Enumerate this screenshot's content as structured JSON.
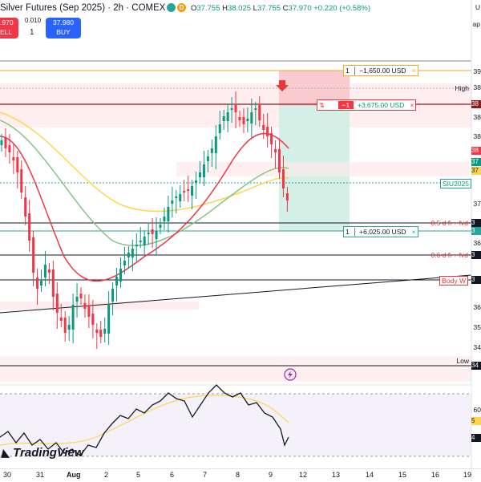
{
  "header": {
    "title": "Silver Futures (Sep 2025) · 2h · COMEX",
    "badge": "D",
    "open_label": "O",
    "open": "37.755",
    "high_label": "H",
    "high": "38.025",
    "low_label": "L",
    "low": "37.755",
    "close_label": "C",
    "close": "37.970",
    "change": "+0.220 (+0.58%)"
  },
  "trade": {
    "sell_price": ".970",
    "sell_label": "ELL",
    "spread": "0.010",
    "quantity": "1",
    "buy_price": "37.980",
    "buy_label": "BUY"
  },
  "right_edge": {
    "top": "U",
    "second": "ap"
  },
  "price_scale": [
    "39",
    "38",
    "38",
    "38",
    "38",
    "38",
    "37",
    "37",
    "37",
    "37",
    "37",
    "36",
    "36",
    "35",
    "34"
  ],
  "orders": {
    "stop": {
      "qty": "1",
      "pnl": "−1,650.00 USD",
      "close": "×"
    },
    "position": {
      "side_icon": "⇅",
      "qty": "−1",
      "pnl": "+3,675.00 USD",
      "close": "×"
    },
    "target": {
      "qty": "1",
      "pnl": "+6,025.00 USD",
      "close": "×"
    }
  },
  "labels": {
    "high": "High",
    "low": "Low",
    "symbol": "SIU2025",
    "fvd_05": "0.5 d fi + fvd",
    "fvd_06": "0.6 d fi + fvd",
    "body_w": "Body W"
  },
  "scale_tags": [
    "38",
    "38",
    "37",
    "37",
    "37",
    "37",
    "3",
    "3",
    "3",
    "3",
    "34"
  ],
  "rsi_scale": [
    "60",
    "5",
    "4"
  ],
  "x_axis": [
    "30",
    "31",
    "Aug",
    "2",
    "5",
    "6",
    "7",
    "8",
    "9",
    "12",
    "13",
    "14",
    "15",
    "16",
    "19"
  ],
  "logo": "TradingView",
  "colors": {
    "bull": "#089981",
    "bear": "#f23645",
    "ema_fast": "#f23645",
    "ema_mid": "#81c784",
    "ema_slow": "#ffd54f",
    "accent": "#2962ff"
  }
}
